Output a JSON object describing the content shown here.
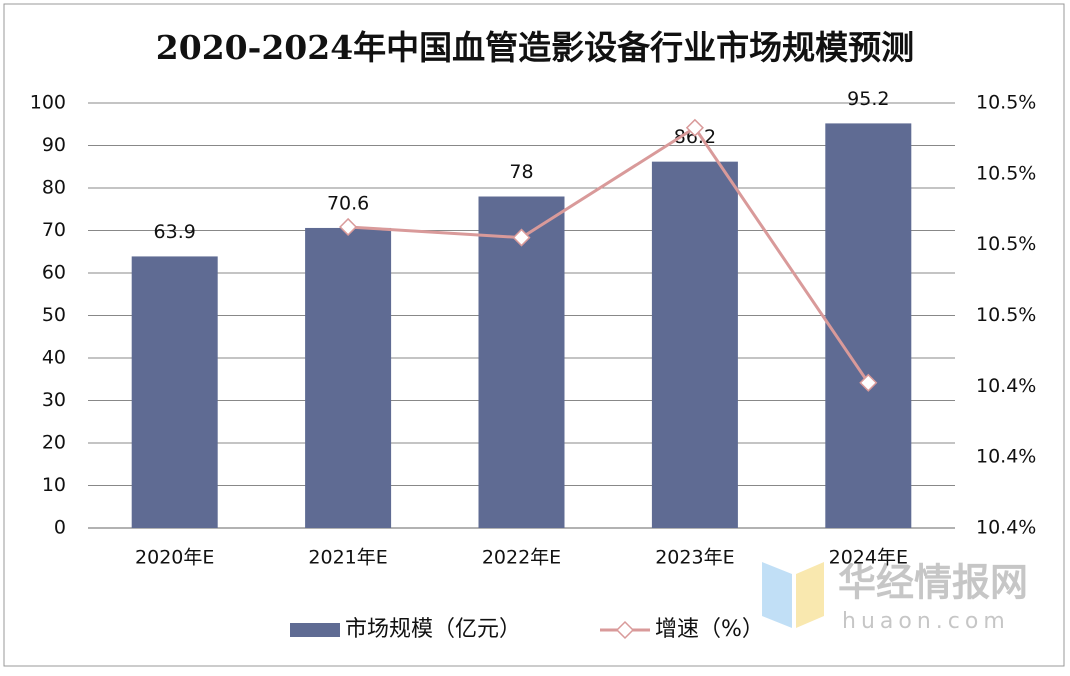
{
  "chart_data": {
    "type": "bar_line",
    "title": "2020-2024年中国血管造影设备行业市场规模预测",
    "categories": [
      "2020年E",
      "2021年E",
      "2022年E",
      "2023年E",
      "2024年E"
    ],
    "series": [
      {
        "name": "市场规模（亿元）",
        "type": "bar",
        "color": "#5f6b93",
        "values": [
          63.9,
          70.6,
          78,
          86.2,
          95.2
        ]
      },
      {
        "name": "增速（%）",
        "type": "line",
        "axis": "y2",
        "color": "#d99a9a",
        "values": [
          null,
          10.485,
          10.482,
          10.513,
          10.441
        ]
      }
    ],
    "ylim": [
      0,
      100
    ],
    "yticks": [
      0,
      10,
      20,
      30,
      40,
      50,
      60,
      70,
      80,
      90,
      100
    ],
    "y2lim": [
      10.4,
      10.52
    ],
    "y2ticks": [
      {
        "value": 10.4,
        "label": "10.4%"
      },
      {
        "value": 10.42,
        "label": "10.4%"
      },
      {
        "value": 10.44,
        "label": "10.4%"
      },
      {
        "value": 10.46,
        "label": "10.5%"
      },
      {
        "value": 10.48,
        "label": "10.5%"
      },
      {
        "value": 10.5,
        "label": "10.5%"
      },
      {
        "value": 10.52,
        "label": "10.5%"
      }
    ],
    "grid": true,
    "legend": "bottom"
  },
  "watermark": {
    "name": "华经情报网",
    "url": "huaon.com"
  }
}
